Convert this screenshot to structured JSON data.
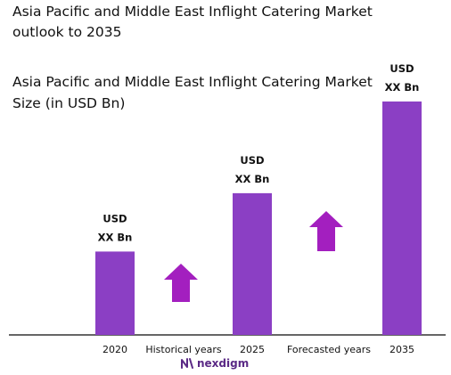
{
  "title": "Asia Pacific and Middle East Inflight Catering Market outlook to 2035",
  "chart_data": {
    "type": "bar",
    "title": "Asia Pacific and Middle East Inflight Catering Market Size (in USD Bn)",
    "categories": [
      "2020",
      "2025",
      "2035"
    ],
    "values": [
      1.0,
      1.7,
      2.8
    ],
    "bar_labels": [
      [
        "USD",
        "XX Bn"
      ],
      [
        "USD",
        "XX Bn"
      ],
      [
        "USD",
        "XX Bn"
      ]
    ],
    "period_labels": [
      "Historical years",
      "Forecasted years"
    ],
    "bar_color": "#8b3fc4",
    "arrow_color": "#a31fbf",
    "axis_color": "#333333",
    "grid": false,
    "legend": "none"
  },
  "logo": {
    "text": "nexdigm",
    "color": "#5b2a86"
  }
}
